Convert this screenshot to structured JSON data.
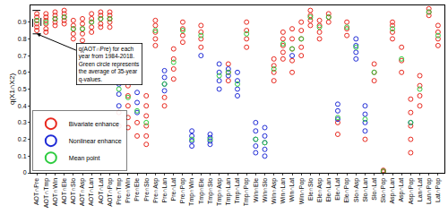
{
  "chart_data": {
    "type": "scatter",
    "y_label": "q(X1∩X2)",
    "ylim": [
      0,
      1
    ],
    "yticks": [
      0,
      0.1,
      0.2,
      0.3,
      0.4,
      0.5,
      0.6,
      0.7,
      0.8,
      0.9
    ],
    "grid": false,
    "legend": "bottom left",
    "categories": [
      "AOT∩Pre",
      "AOT∩Tmp",
      "AOT∩Win",
      "AOT∩Ele",
      "AOT∩Slo",
      "AOT∩Asp",
      "AOT∩Lan",
      "AOT∩Lat",
      "AOT∩Pop",
      "Pre∩Tmp",
      "Pre∩Win",
      "Pre∩Ele",
      "Pre∩Slo",
      "Pre∩Asp",
      "Pre∩Lan",
      "Pre∩Lat",
      "Pre∩Pop",
      "Tmp∩Win",
      "Tmp∩Ele",
      "Tmp∩Slo",
      "Tmp∩Asp",
      "Tmp∩Lan",
      "Tmp∩Lat",
      "Tmp∩Pop",
      "Win∩Ele",
      "Win∩Slo",
      "Win∩Asp",
      "Win∩Lan",
      "Win∩Lat",
      "Win∩Pop",
      "Ele∩Slo",
      "Ele∩Asp",
      "Ele∩Lan",
      "Ele∩Lat",
      "Ele∩Pop",
      "Slo∩Asp",
      "Slo∩Lan",
      "Slo∩Lat",
      "Slo∩Pop",
      "Asp∩Lan",
      "Asp∩Lat",
      "Asp∩Pop",
      "Lan∩Lat",
      "Lan∩Pop",
      "Lat∩Pop"
    ],
    "series": [
      {
        "name": "Bivariate enhance",
        "color": "#e8281e",
        "marker": "circle-open",
        "values": [
          [
            0.85,
            0.87,
            0.89,
            0.91,
            0.93,
            0.95
          ],
          [
            0.84,
            0.86,
            0.89,
            0.91,
            0.93,
            0.95
          ],
          [
            0.88,
            0.9,
            0.92,
            0.94,
            0.96
          ],
          [
            0.89,
            0.91,
            0.93,
            0.95,
            0.97
          ],
          [
            0.8,
            0.83,
            0.86,
            0.88,
            0.91
          ],
          [
            0.79,
            0.83,
            0.86,
            0.89,
            0.92
          ],
          [
            0.84,
            0.87,
            0.9,
            0.92,
            0.95
          ],
          [
            0.87,
            0.89,
            0.92,
            0.94,
            0.96
          ],
          [
            0.87,
            0.9,
            0.92,
            0.94,
            0.96
          ],
          [
            0.28,
            0.36
          ],
          [
            0.27,
            0.33,
            0.4,
            0.46,
            0.52,
            0.58,
            0.64
          ],
          [
            0.22,
            0.3
          ],
          [
            0.17,
            0.22,
            0.28,
            0.34,
            0.4,
            0.46
          ],
          [
            0.76,
            0.8,
            0.84,
            0.88,
            0.91
          ],
          [
            0.4,
            0.45
          ],
          [
            0.56,
            0.62,
            0.68,
            0.74
          ],
          [
            0.78,
            0.82,
            0.86,
            0.9
          ],
          [],
          [
            0.75,
            0.8,
            0.84,
            0.88
          ],
          [],
          [],
          [
            0.55,
            0.6,
            0.65
          ],
          [],
          [
            0.75,
            0.8,
            0.85,
            0.9
          ],
          [],
          [],
          [
            0.55,
            0.6,
            0.64,
            0.68
          ],
          [
            0.68,
            0.72,
            0.76,
            0.8,
            0.84
          ],
          [
            0.6,
            0.67,
            0.74,
            0.8,
            0.86
          ],
          [
            0.7,
            0.75,
            0.8,
            0.85,
            0.9
          ],
          [
            0.88,
            0.91,
            0.94,
            0.97
          ],
          [
            0.8,
            0.84,
            0.88,
            0.91
          ],
          [
            0.9,
            0.93,
            0.95
          ],
          [
            0.23,
            0.3
          ],
          [
            0.82,
            0.86,
            0.9
          ],
          [],
          [
            0.2
          ],
          [
            0.55,
            0.6,
            0.65
          ],
          [
            0.005,
            0.01,
            0.015
          ],
          [
            0.8,
            0.84,
            0.88,
            0.9
          ],
          [
            0.6,
            0.67,
            0.75
          ],
          [
            0.12,
            0.2,
            0.28,
            0.36,
            0.44
          ],
          [
            0.4,
            0.46,
            0.52,
            0.58
          ],
          [
            0.94,
            0.96,
            0.98
          ],
          [
            0.76,
            0.8,
            0.84,
            0.88
          ]
        ]
      },
      {
        "name": "Nonlinear enhance",
        "color": "#1f2bd6",
        "marker": "circle-open",
        "values": [
          [],
          [],
          [],
          [],
          [],
          [],
          [],
          [],
          [],
          [
            0.4,
            0.47,
            0.53,
            0.6,
            0.66,
            0.7
          ],
          [],
          [
            0.36,
            0.42,
            0.48,
            0.55
          ],
          [],
          [],
          [
            0.49,
            0.53,
            0.57,
            0.61
          ],
          [],
          [],
          [
            0.16,
            0.19,
            0.22,
            0.25
          ],
          [
            0.7
          ],
          [
            0.17,
            0.19,
            0.21,
            0.23
          ],
          [
            0.5,
            0.55,
            0.6,
            0.65
          ],
          [
            0.58,
            0.62
          ],
          [
            0.46,
            0.5,
            0.55,
            0.6
          ],
          [],
          [
            0.12,
            0.16,
            0.2,
            0.25,
            0.3
          ],
          [
            0.1,
            0.14,
            0.18,
            0.22,
            0.27
          ],
          [],
          [],
          [
            0.7
          ],
          [],
          [],
          [],
          [],
          [
            0.32,
            0.37,
            0.41
          ],
          [],
          [
            0.68,
            0.72,
            0.76,
            0.8
          ],
          [
            0.25,
            0.3,
            0.35,
            0.4
          ],
          [],
          [],
          [],
          [],
          [
            0.3
          ],
          [],
          [],
          []
        ]
      },
      {
        "name": "Mean point",
        "color": "#2ecc40",
        "marker": "circle-open",
        "values": [
          0.91,
          0.9,
          0.92,
          0.93,
          0.86,
          0.86,
          0.9,
          0.92,
          0.92,
          0.5,
          0.45,
          0.37,
          0.3,
          0.85,
          0.53,
          0.66,
          0.85,
          0.2,
          0.82,
          0.2,
          0.58,
          0.6,
          0.53,
          0.83,
          0.2,
          0.18,
          0.62,
          0.77,
          0.74,
          0.8,
          0.93,
          0.87,
          0.93,
          0.33,
          0.87,
          0.75,
          0.32,
          0.6,
          0.01,
          0.86,
          0.68,
          0.3,
          0.5,
          0.96,
          0.82
        ]
      }
    ],
    "annotation": [
      "q(AOT∩Pre) for each",
      "year from 1984-2018.",
      "Green circle represents",
      "the average of 35-year",
      "q-values."
    ]
  }
}
